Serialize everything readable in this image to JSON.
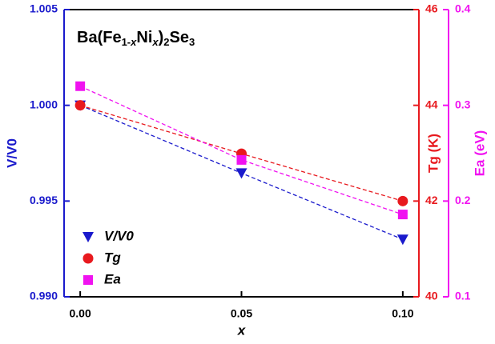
{
  "chart_data": {
    "type": "scatter",
    "annotation_parts": [
      "Ba(Fe",
      "1-",
      "x",
      "Ni",
      "x",
      ")",
      "2",
      "Se",
      "3"
    ],
    "xlabel": "x",
    "ylabel": "V/V0",
    "y2label": "Tg (K)",
    "y3label": "Ea (eV)",
    "x": [
      0.0,
      0.05,
      0.1
    ],
    "xlim": [
      -0.005,
      0.105
    ],
    "xticks": [
      {
        "value": 0,
        "label": "0.00"
      },
      {
        "value": 0.05,
        "label": "0.05"
      },
      {
        "value": 0.1,
        "label": "0.10"
      }
    ],
    "ylim": [
      0.99,
      1.005
    ],
    "yticks": [
      {
        "value": 0.99,
        "label": "0.990"
      },
      0.995,
      {
        "value": 1,
        "label": "1.000"
      },
      1.005
    ],
    "y2lim": [
      40,
      46
    ],
    "y2ticks": [
      40,
      42,
      44,
      46
    ],
    "y3lim": [
      0.1,
      0.4
    ],
    "y3ticks": [
      0.1,
      0.2,
      0.3,
      0.4
    ],
    "axis_colors": {
      "y": "#1a1acc",
      "y2": "#e8191e",
      "y3": "#f012f0"
    },
    "line_style": "dashed",
    "legend": "lower left",
    "series": [
      {
        "name": "V/V0",
        "color": "#1a1acc",
        "marker": "triangle-down",
        "axis": "y",
        "values": [
          1.0,
          0.99646,
          0.993
        ]
      },
      {
        "name": "Tg",
        "color": "#e8191e",
        "marker": "circle",
        "axis": "y2",
        "values": [
          44,
          42.99,
          42
        ]
      },
      {
        "name": "Ea",
        "color": "#f012f0",
        "marker": "square",
        "axis": "y3",
        "values": [
          0.32,
          0.243,
          0.186
        ]
      }
    ]
  }
}
